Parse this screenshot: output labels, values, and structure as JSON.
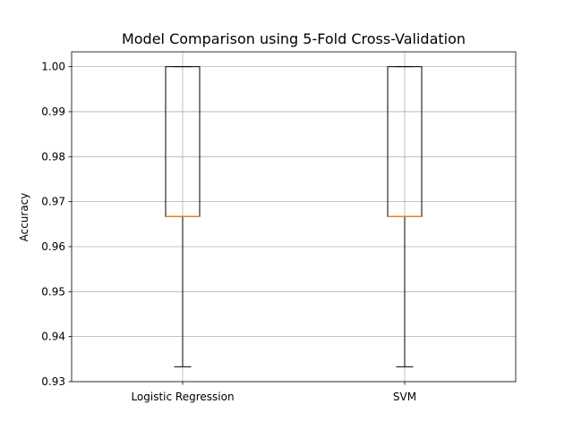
{
  "chart_data": {
    "type": "box",
    "title": "Model Comparison using 5-Fold Cross-Validation",
    "xlabel": "",
    "ylabel": "Accuracy",
    "categories": [
      "Logistic Regression",
      "SVM"
    ],
    "boxes": [
      {
        "category": "Logistic Regression",
        "whisker_low": 0.9333,
        "q1": 0.9667,
        "median": 0.9667,
        "q3": 1.0,
        "whisker_high": 1.0
      },
      {
        "category": "SVM",
        "whisker_low": 0.9333,
        "q1": 0.9667,
        "median": 0.9667,
        "q3": 1.0,
        "whisker_high": 1.0
      }
    ],
    "ylim": [
      0.93,
      1.0033
    ],
    "yticks": [
      "0.93",
      "0.94",
      "0.95",
      "0.96",
      "0.97",
      "0.98",
      "0.99",
      "1.00"
    ],
    "ytick_values": [
      0.93,
      0.94,
      0.95,
      0.96,
      0.97,
      0.98,
      0.99,
      1.0
    ],
    "grid": true,
    "colors": {
      "median": "#ff7f0e",
      "box": "#000000",
      "grid": "#b0b0b0"
    }
  }
}
